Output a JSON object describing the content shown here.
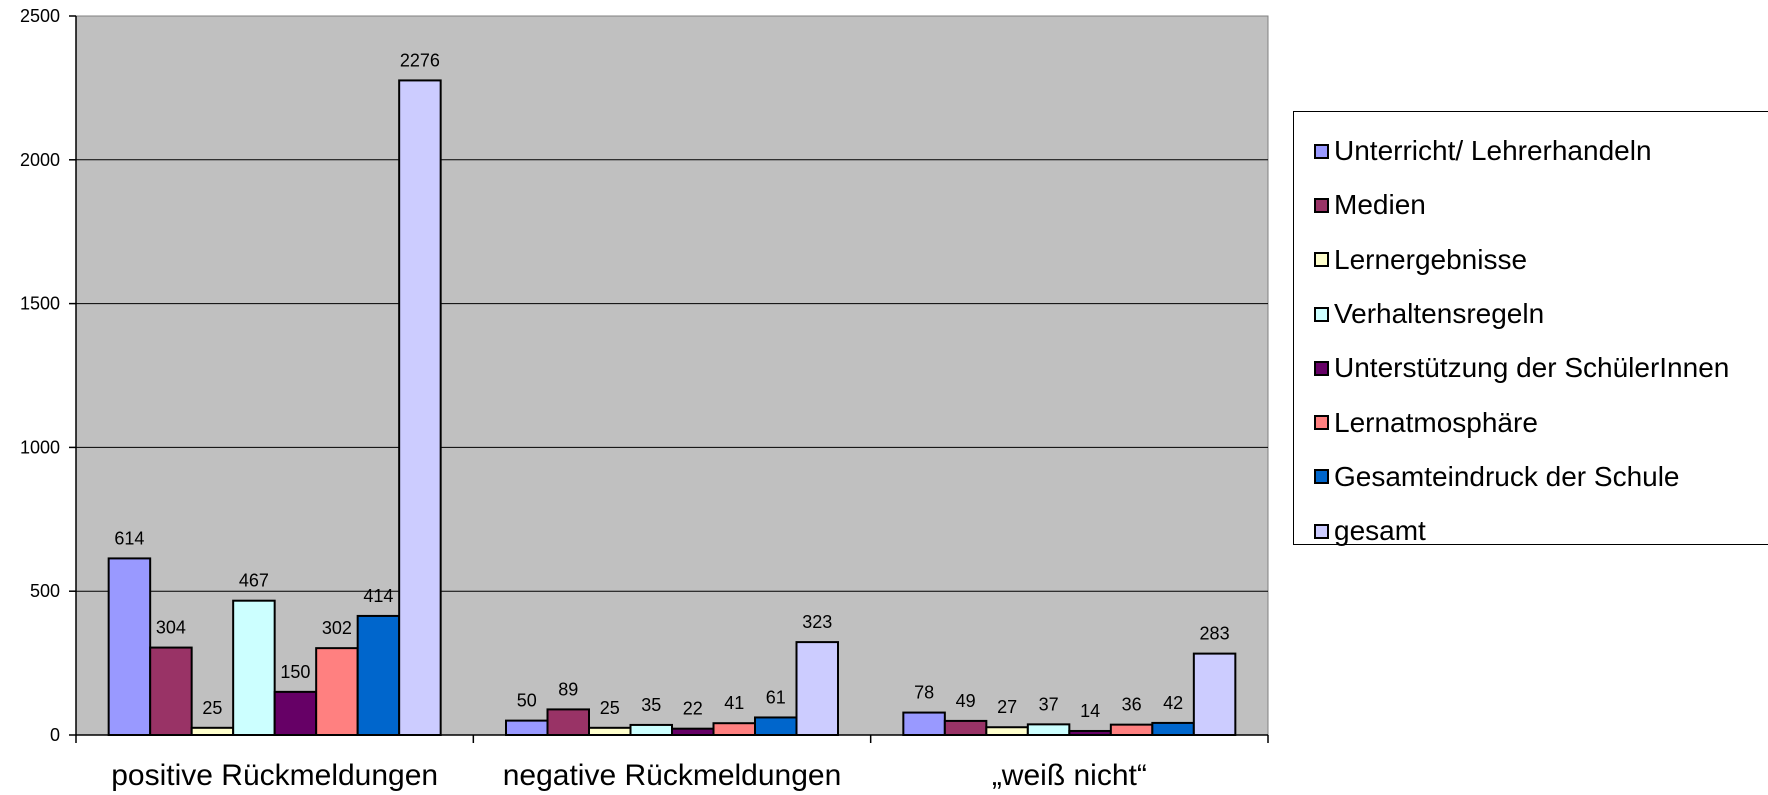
{
  "chart_data": {
    "type": "bar",
    "categories": [
      "positive Rückmeldungen",
      "negative Rückmeldungen",
      "„weiß nicht“"
    ],
    "series": [
      {
        "name": "Unterricht/ Lehrerhandeln",
        "color": "#9999ff",
        "values": [
          614,
          50,
          78
        ]
      },
      {
        "name": "Medien",
        "color": "#993366",
        "values": [
          304,
          89,
          49
        ]
      },
      {
        "name": "Lernergebnisse",
        "color": "#ffffcc",
        "values": [
          25,
          25,
          27
        ]
      },
      {
        "name": "Verhaltensregeln",
        "color": "#ccffff",
        "values": [
          467,
          35,
          37
        ]
      },
      {
        "name": "Unterstützung der SchülerInnen",
        "color": "#660066",
        "values": [
          150,
          22,
          14
        ]
      },
      {
        "name": "Lernatmosphäre",
        "color": "#ff8080",
        "values": [
          302,
          41,
          36
        ]
      },
      {
        "name": "Gesamteindruck der Schule",
        "color": "#0066cc",
        "values": [
          414,
          61,
          42
        ]
      },
      {
        "name": "gesamt",
        "color": "#ccccff",
        "values": [
          2276,
          323,
          283
        ]
      }
    ],
    "title": "",
    "xlabel": "",
    "ylabel": "",
    "ylim": [
      0,
      2500
    ],
    "yticks": [
      0,
      500,
      1000,
      1500,
      2000,
      2500
    ],
    "grid": true,
    "legend_position": "right",
    "plot_background": "#c0c0c0",
    "data_labels": true
  }
}
